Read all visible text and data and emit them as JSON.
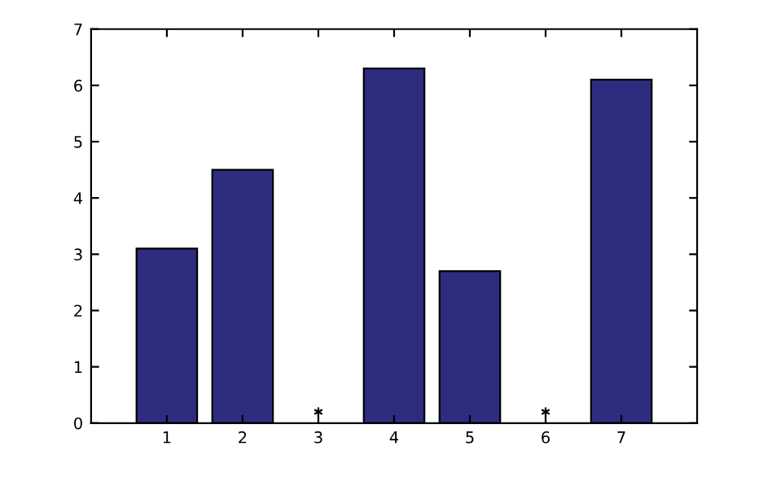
{
  "chart_data": {
    "type": "bar",
    "x": [
      1,
      2,
      3,
      4,
      5,
      6,
      7
    ],
    "series": [
      {
        "color": "#2e2c7e",
        "values": [
          3.1,
          4.5,
          null,
          6.3,
          2.7,
          null,
          6.1
        ]
      },
      {
        "type": "scatter",
        "color": "#000000",
        "marker": "cross",
        "values": [
          null,
          null,
          0.2,
          null,
          null,
          0.2,
          null
        ]
      }
    ],
    "xlim": [
      0,
      8
    ],
    "xticks": [
      1,
      2,
      3,
      4,
      5,
      6,
      7
    ],
    "ylim": [
      0,
      7
    ],
    "yticks": [
      0,
      1,
      2,
      3,
      4,
      5,
      6,
      7
    ],
    "grid": false,
    "legend": false
  }
}
